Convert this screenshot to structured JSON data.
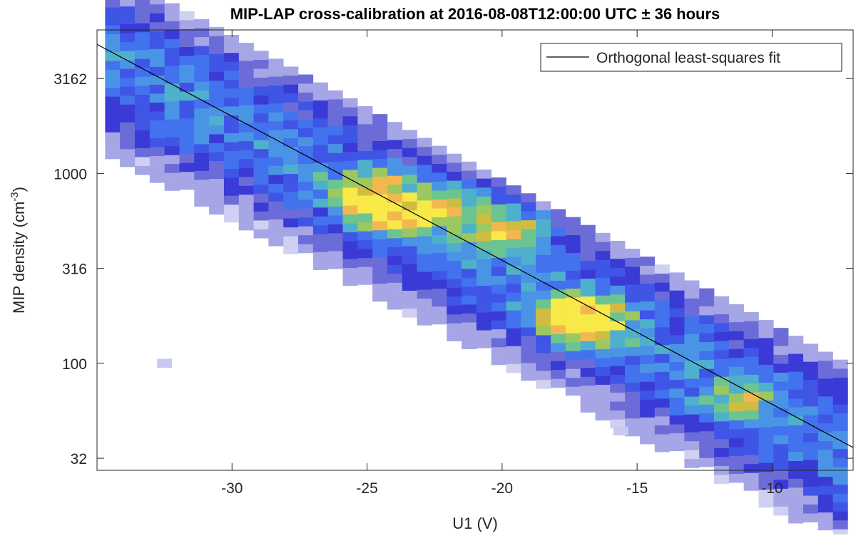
{
  "chart_data": {
    "type": "heatmap",
    "title": "MIP-LAP cross-calibration at 2016-08-08T12:00:00 UTC ± 36 hours",
    "xlabel": "U1 (V)",
    "ylabel": "MIP density (cm",
    "ylabel_sup": "-3",
    "ylabel_end": ")",
    "xlim": [
      -35,
      -7
    ],
    "ylim": [
      27.3,
      5700
    ],
    "yscale": "log",
    "xticks": [
      -30,
      -25,
      -20,
      -15,
      -10
    ],
    "xtick_labels": [
      "-30",
      "-25",
      "-20",
      "-15",
      "-10"
    ],
    "yticks": [
      31.6,
      100,
      316,
      1000,
      3162
    ],
    "ytick_labels": [
      "32",
      "100",
      "316",
      "1000",
      "3162"
    ],
    "grid": false,
    "colormap": "parula",
    "bin_width_v": 0.55,
    "bin_height_decades": 0.047,
    "fit_line": {
      "name": "Orthogonal least-squares fit",
      "points": [
        [
          -35,
          4786
        ],
        [
          -7,
          36
        ]
      ],
      "color": "#000000"
    },
    "hotspots": [
      {
        "x": -24.7,
        "y": 760,
        "level": "max"
      },
      {
        "x": -24.0,
        "y": 560,
        "level": "high"
      },
      {
        "x": -21.8,
        "y": 640,
        "level": "high"
      },
      {
        "x": -19.8,
        "y": 480,
        "level": "high"
      },
      {
        "x": -17.3,
        "y": 180,
        "level": "max"
      },
      {
        "x": -16.8,
        "y": 150,
        "level": "high"
      },
      {
        "x": -11.2,
        "y": 62,
        "level": "medium"
      }
    ],
    "outliers": [
      {
        "x": -32.5,
        "y": 100
      },
      {
        "x": -15.6,
        "y": 44
      }
    ],
    "legend": {
      "entries": [
        "Orthogonal least-squares fit"
      ],
      "placement": "top-right"
    }
  }
}
